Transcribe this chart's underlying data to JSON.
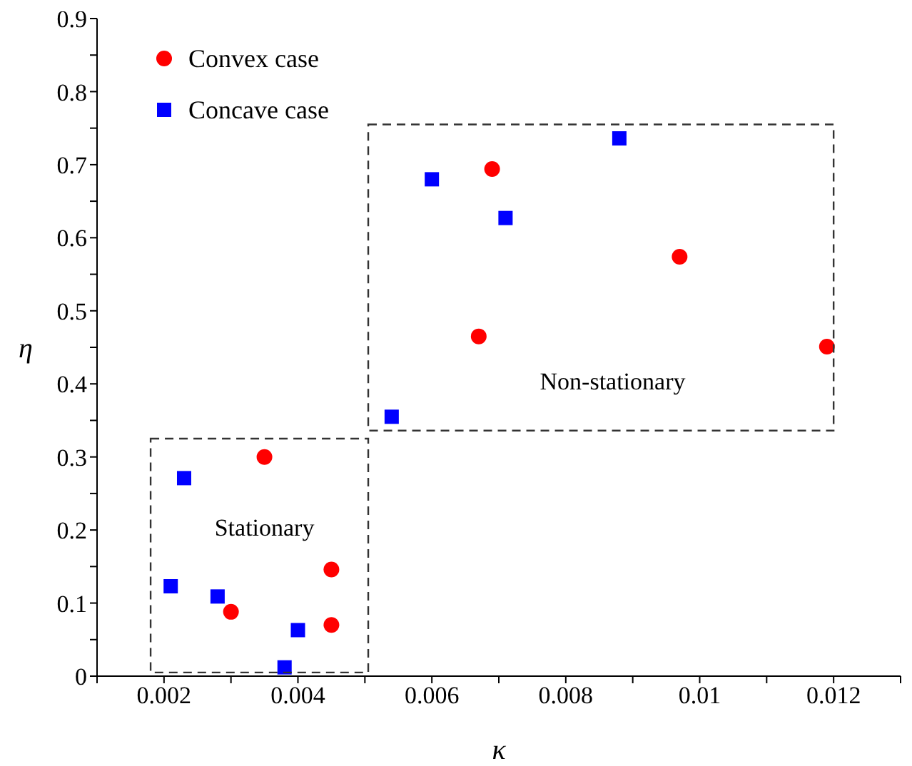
{
  "chart_data": {
    "type": "scatter",
    "xlabel": "κ",
    "ylabel": "η",
    "xlim": [
      0.001,
      0.013
    ],
    "ylim": [
      0,
      0.9
    ],
    "xticks": [
      {
        "value": 0.001,
        "label": null
      },
      0.002,
      {
        "value": 0.003,
        "label": null
      },
      0.004,
      {
        "value": 0.005,
        "label": null
      },
      0.006,
      {
        "value": 0.007,
        "label": null
      },
      0.008,
      {
        "value": 0.009,
        "label": null
      },
      0.01,
      {
        "value": 0.011,
        "label": null
      },
      0.012,
      {
        "value": 0.013,
        "label": null
      }
    ],
    "yticks": [
      0,
      {
        "value": 0.05,
        "label": null
      },
      0.1,
      {
        "value": 0.15,
        "label": null
      },
      0.2,
      {
        "value": 0.25,
        "label": null
      },
      0.3,
      {
        "value": 0.35,
        "label": null
      },
      0.4,
      {
        "value": 0.45,
        "label": null
      },
      0.5,
      {
        "value": 0.55,
        "label": null
      },
      0.6,
      {
        "value": 0.65,
        "label": null
      },
      0.7,
      {
        "value": 0.75,
        "label": null
      },
      0.8,
      {
        "value": 0.85,
        "label": null
      },
      0.9
    ],
    "grid": false,
    "legend": "top left",
    "series": [
      {
        "name": "Convex case",
        "color": "#ff0000",
        "marker": "circle",
        "x": [
          0.0035,
          0.003,
          0.0045,
          0.0045,
          0.0067,
          0.0069,
          0.0097,
          0.0119
        ],
        "values": [
          0.3,
          0.088,
          0.146,
          0.07,
          0.465,
          0.694,
          0.574,
          0.451
        ]
      },
      {
        "name": "Concave case",
        "color": "#0000ff",
        "marker": "square",
        "x": [
          0.0023,
          0.0021,
          0.0028,
          0.004,
          0.0038,
          0.0054,
          0.006,
          0.0071,
          0.0088
        ],
        "values": [
          0.271,
          0.123,
          0.109,
          0.063,
          0.012,
          0.355,
          0.68,
          0.627,
          0.736
        ]
      }
    ],
    "annotations": [
      "Stationary",
      "Non-stationary"
    ]
  }
}
